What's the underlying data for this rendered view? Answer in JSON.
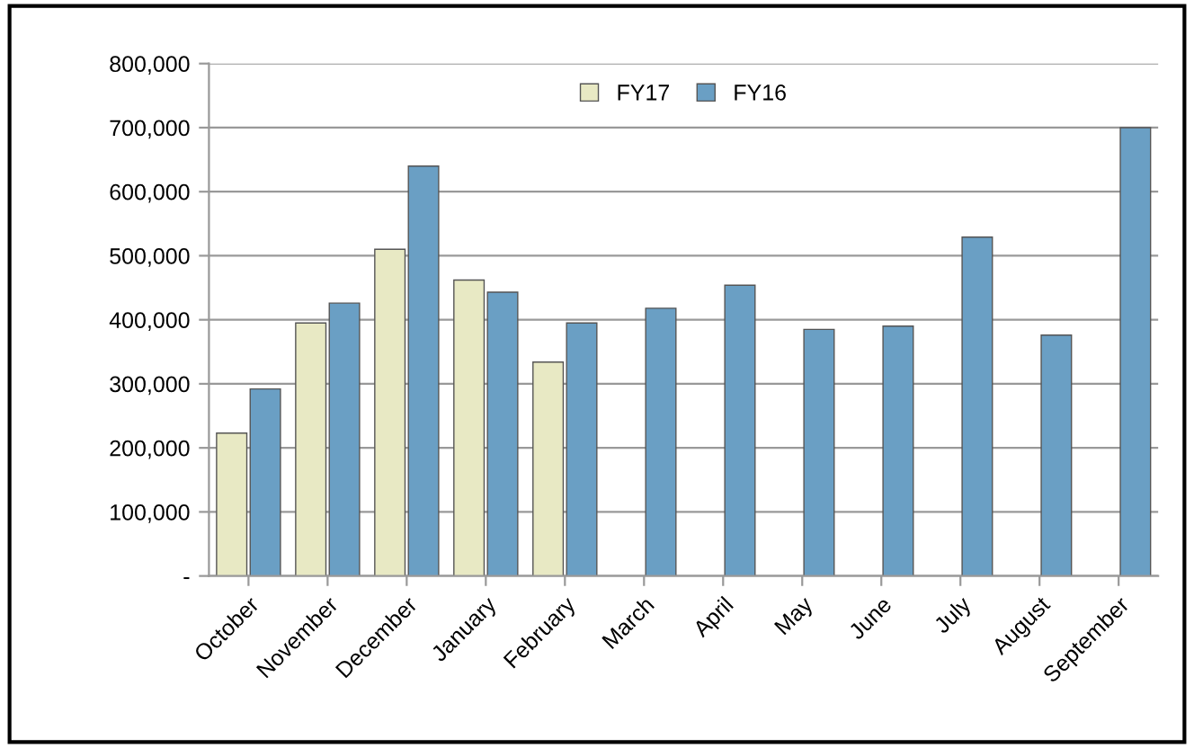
{
  "chart_data": {
    "type": "bar",
    "categories": [
      "October",
      "November",
      "December",
      "January",
      "February",
      "March",
      "April",
      "May",
      "June",
      "July",
      "August",
      "September"
    ],
    "series": [
      {
        "name": "FY17",
        "color": "#e8e9c4",
        "values": [
          223000,
          395000,
          510000,
          462000,
          334000,
          null,
          null,
          null,
          null,
          null,
          null,
          null
        ]
      },
      {
        "name": "FY16",
        "color": "#6a9fc4",
        "values": [
          292000,
          426000,
          640000,
          443000,
          395000,
          418000,
          454000,
          385000,
          390000,
          529000,
          376000,
          700000
        ]
      }
    ],
    "ylim": [
      0,
      800000
    ],
    "yticks": [
      {
        "value": 0,
        "label": "-"
      },
      {
        "value": 100000,
        "label": "100,000"
      },
      {
        "value": 200000,
        "label": "200,000"
      },
      {
        "value": 300000,
        "label": "300,000"
      },
      {
        "value": 400000,
        "label": "400,000"
      },
      {
        "value": 500000,
        "label": "500,000"
      },
      {
        "value": 600000,
        "label": "600,000"
      },
      {
        "value": 700000,
        "label": "700,000"
      },
      {
        "value": 800000,
        "label": "800,000"
      }
    ],
    "grid": "y",
    "legend": "top"
  }
}
